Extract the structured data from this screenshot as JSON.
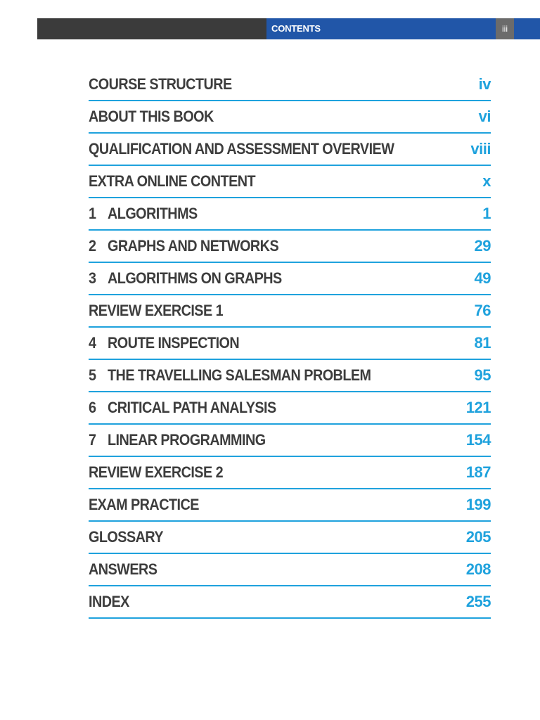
{
  "header": {
    "title": "CONTENTS",
    "page_number": "iii"
  },
  "colors": {
    "header_dark": "#3b3b3b",
    "header_blue": "#2156a8",
    "accent": "#1fa2dd",
    "text": "#3d3d3d"
  },
  "toc": {
    "entries": [
      {
        "num": "",
        "title": "COURSE STRUCTURE",
        "page": "iv"
      },
      {
        "num": "",
        "title": "ABOUT THIS BOOK",
        "page": "vi"
      },
      {
        "num": "",
        "title": "QUALIFICATION AND ASSESSMENT OVERVIEW",
        "page": "viii"
      },
      {
        "num": "",
        "title": "EXTRA ONLINE CONTENT",
        "page": "x"
      },
      {
        "num": "1",
        "title": "ALGORITHMS",
        "page": "1"
      },
      {
        "num": "2",
        "title": "GRAPHS AND NETWORKS",
        "page": "29"
      },
      {
        "num": "3",
        "title": "ALGORITHMS ON GRAPHS",
        "page": "49"
      },
      {
        "num": "",
        "title": "REVIEW EXERCISE 1",
        "page": "76"
      },
      {
        "num": "4",
        "title": "ROUTE INSPECTION",
        "page": "81"
      },
      {
        "num": "5",
        "title": "THE TRAVELLING SALESMAN PROBLEM",
        "page": "95"
      },
      {
        "num": "6",
        "title": "CRITICAL PATH ANALYSIS",
        "page": "121"
      },
      {
        "num": "7",
        "title": "LINEAR PROGRAMMING",
        "page": "154"
      },
      {
        "num": "",
        "title": "REVIEW EXERCISE 2",
        "page": "187"
      },
      {
        "num": "",
        "title": "EXAM PRACTICE",
        "page": "199"
      },
      {
        "num": "",
        "title": "GLOSSARY",
        "page": "205"
      },
      {
        "num": "",
        "title": "ANSWERS",
        "page": "208"
      },
      {
        "num": "",
        "title": "INDEX",
        "page": "255"
      }
    ]
  }
}
